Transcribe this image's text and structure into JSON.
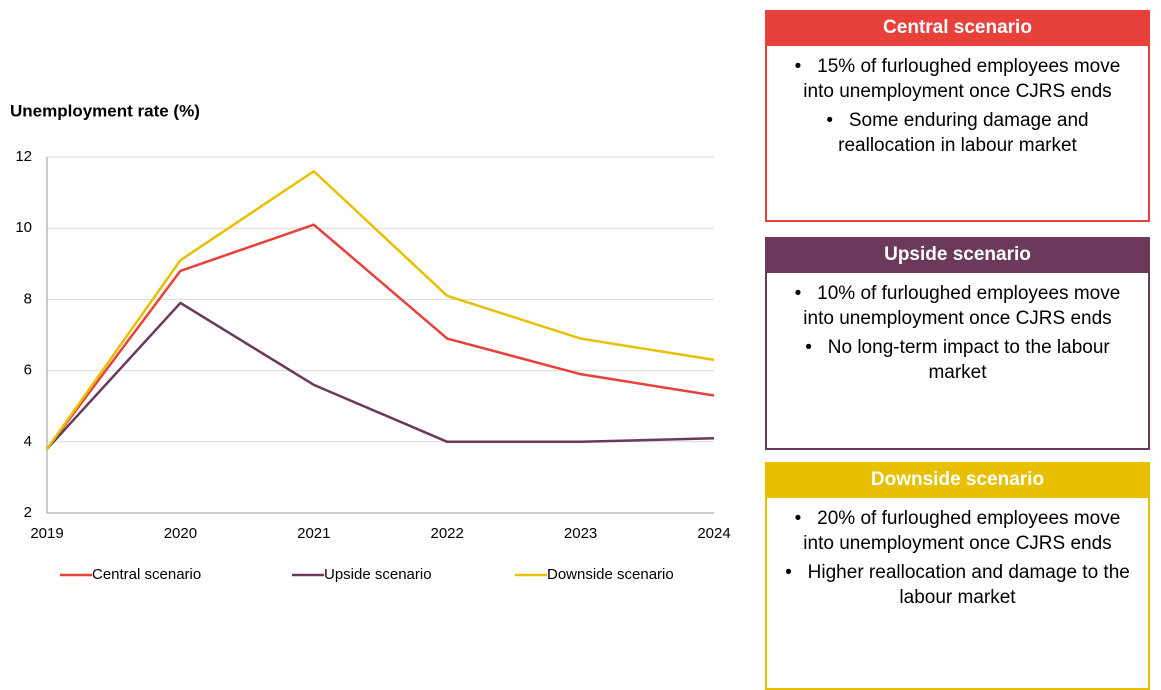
{
  "chart_data": {
    "type": "line",
    "y_label": "Unemployment rate (%)",
    "categories": [
      "2019",
      "2020",
      "2021",
      "2022",
      "2023",
      "2024"
    ],
    "series": [
      {
        "name": "Central scenario",
        "color": "#e8413c",
        "values": [
          3.8,
          8.8,
          10.1,
          6.9,
          5.9,
          5.3
        ]
      },
      {
        "name": "Upside scenario",
        "color": "#6b3a5a",
        "values": [
          3.8,
          7.9,
          5.6,
          4.0,
          4.0,
          4.1
        ]
      },
      {
        "name": "Downside scenario",
        "color": "#e8c000",
        "values": [
          3.8,
          9.1,
          11.6,
          8.1,
          6.9,
          6.3
        ]
      }
    ],
    "ylim": [
      2,
      12
    ],
    "yticks": [
      2,
      4,
      6,
      8,
      10,
      12
    ],
    "grid": true
  },
  "panels": [
    {
      "title": "Central scenario",
      "color": "#e8413c",
      "bullets": [
        "15% of furloughed employees move into unemployment once CJRS ends",
        "Some enduring damage and reallocation in labour market"
      ]
    },
    {
      "title": "Upside scenario",
      "color": "#6b3a5a",
      "bullets": [
        "10% of furloughed employees move into unemployment once CJRS ends",
        "No long-term impact to the labour market"
      ]
    },
    {
      "title": "Downside scenario",
      "color": "#e8c000",
      "bullets": [
        "20% of furloughed employees move into unemployment once CJRS ends",
        "Higher reallocation and damage to the labour market"
      ]
    }
  ]
}
